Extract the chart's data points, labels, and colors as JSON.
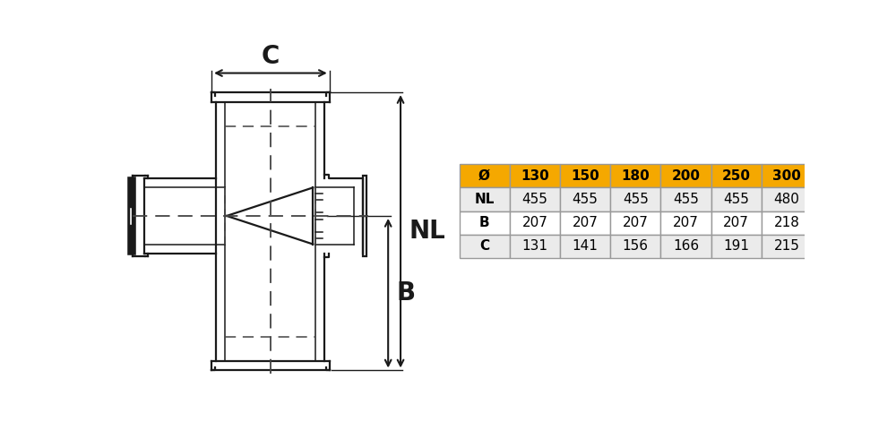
{
  "bg_color": "#ffffff",
  "table": {
    "headers": [
      "Ø",
      "130",
      "150",
      "180",
      "200",
      "250",
      "300"
    ],
    "rows": [
      [
        "NL",
        "455",
        "455",
        "455",
        "455",
        "455",
        "480"
      ],
      [
        "B",
        "207",
        "207",
        "207",
        "207",
        "207",
        "218"
      ],
      [
        "C",
        "131",
        "141",
        "156",
        "166",
        "191",
        "215"
      ]
    ],
    "header_bg": "#f5a800",
    "header_fg": "#000000",
    "row_bg_0": "#ebebeb",
    "row_bg_1": "#ffffff",
    "row_bg_2": "#ebebeb",
    "border_color": "#999999",
    "font_size": 11
  },
  "dim_label_fontsize": 20,
  "line_color": "#1a1a1a",
  "dashed_color": "#444444"
}
